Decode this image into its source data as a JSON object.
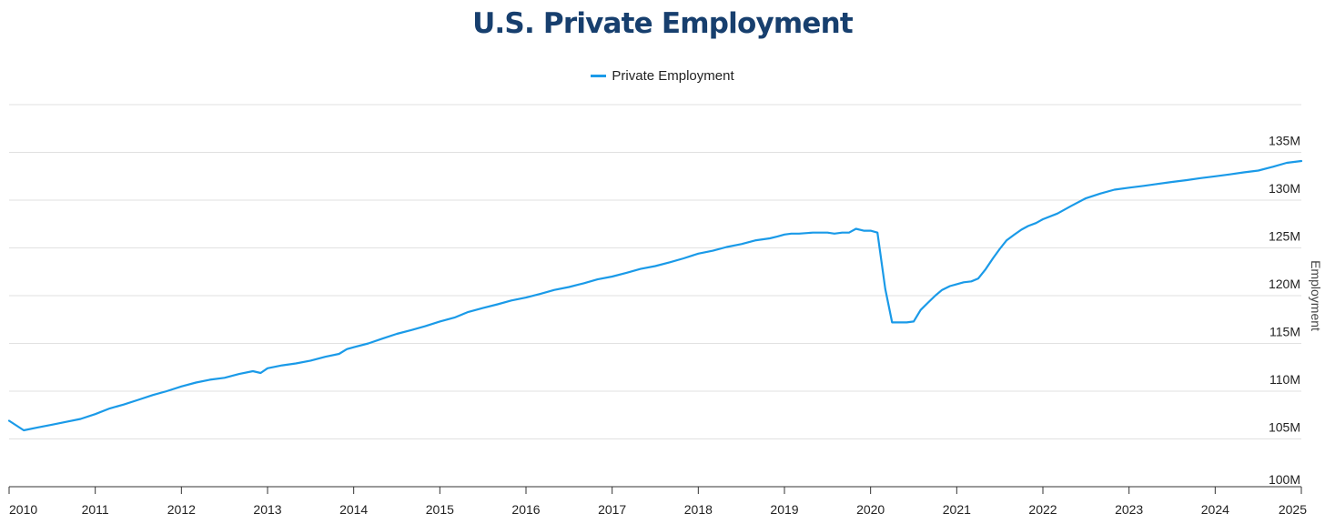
{
  "chart_data": {
    "type": "line",
    "title": "U.S. Private Employment",
    "xlabel": "",
    "ylabel": "Employment",
    "x_unit": "year",
    "xlim": [
      2010,
      2025
    ],
    "ylim": [
      100,
      140
    ],
    "x_ticks": [
      2010,
      2011,
      2012,
      2013,
      2014,
      2015,
      2016,
      2017,
      2018,
      2019,
      2020,
      2021,
      2022,
      2023,
      2024,
      2025
    ],
    "x_tick_labels": [
      "2010",
      "2011",
      "2012",
      "2013",
      "2014",
      "2015",
      "2016",
      "2017",
      "2018",
      "2019",
      "2020",
      "2021",
      "2022",
      "2023",
      "2024",
      "2025"
    ],
    "y_ticks": [
      100,
      105,
      110,
      115,
      120,
      125,
      130,
      135,
      140
    ],
    "y_tick_labels": [
      "100M",
      "105M",
      "110M",
      "115M",
      "120M",
      "125M",
      "130M",
      "135M",
      ""
    ],
    "grid": true,
    "legend_position": "top-center",
    "series": [
      {
        "name": "Private Employment",
        "color": "#1a9ae8",
        "x": [
          2010.0,
          2010.17,
          2010.33,
          2010.5,
          2010.67,
          2010.83,
          2011.0,
          2011.17,
          2011.33,
          2011.5,
          2011.67,
          2011.83,
          2012.0,
          2012.17,
          2012.33,
          2012.5,
          2012.67,
          2012.83,
          2012.92,
          2013.0,
          2013.17,
          2013.33,
          2013.5,
          2013.67,
          2013.83,
          2013.92,
          2014.0,
          2014.17,
          2014.33,
          2014.5,
          2014.67,
          2014.83,
          2015.0,
          2015.17,
          2015.33,
          2015.5,
          2015.67,
          2015.83,
          2016.0,
          2016.17,
          2016.33,
          2016.5,
          2016.67,
          2016.83,
          2017.0,
          2017.17,
          2017.33,
          2017.5,
          2017.67,
          2017.83,
          2018.0,
          2018.17,
          2018.33,
          2018.5,
          2018.67,
          2018.83,
          2018.92,
          2019.0,
          2019.08,
          2019.17,
          2019.33,
          2019.5,
          2019.58,
          2019.67,
          2019.75,
          2019.83,
          2019.92,
          2020.0,
          2020.08,
          2020.17,
          2020.25,
          2020.33,
          2020.42,
          2020.5,
          2020.58,
          2020.67,
          2020.75,
          2020.83,
          2020.92,
          2021.0,
          2021.08,
          2021.17,
          2021.25,
          2021.33,
          2021.42,
          2021.5,
          2021.58,
          2021.67,
          2021.75,
          2021.83,
          2021.92,
          2022.0,
          2022.17,
          2022.33,
          2022.5,
          2022.67,
          2022.83,
          2023.0,
          2023.17,
          2023.33,
          2023.5,
          2023.67,
          2023.83,
          2024.0,
          2024.17,
          2024.33,
          2024.5,
          2024.67,
          2024.83,
          2025.0
        ],
        "y": [
          106.9,
          105.9,
          106.2,
          106.5,
          106.8,
          107.1,
          107.6,
          108.2,
          108.6,
          109.1,
          109.6,
          110.0,
          110.5,
          110.9,
          111.2,
          111.4,
          111.8,
          112.1,
          111.9,
          112.4,
          112.7,
          112.9,
          113.2,
          113.6,
          113.9,
          114.4,
          114.6,
          115.0,
          115.5,
          116.0,
          116.4,
          116.8,
          117.3,
          117.7,
          118.3,
          118.7,
          119.1,
          119.5,
          119.8,
          120.2,
          120.6,
          120.9,
          121.3,
          121.7,
          122.0,
          122.4,
          122.8,
          123.1,
          123.5,
          123.9,
          124.4,
          124.7,
          125.1,
          125.4,
          125.8,
          126.0,
          126.2,
          126.4,
          126.5,
          126.5,
          126.6,
          126.6,
          126.5,
          126.6,
          126.6,
          127.0,
          126.8,
          126.8,
          126.6,
          120.7,
          117.2,
          117.2,
          117.2,
          117.3,
          118.5,
          119.3,
          120.0,
          120.6,
          121.0,
          121.2,
          121.4,
          121.5,
          121.8,
          122.7,
          123.9,
          124.9,
          125.8,
          126.4,
          126.9,
          127.3,
          127.6,
          128.0,
          128.6,
          129.4,
          130.2,
          130.7,
          131.1,
          131.3,
          131.5,
          131.7,
          131.9,
          132.1,
          132.3,
          132.5,
          132.7,
          132.9,
          133.1,
          133.5,
          133.9,
          134.1
        ]
      }
    ]
  }
}
